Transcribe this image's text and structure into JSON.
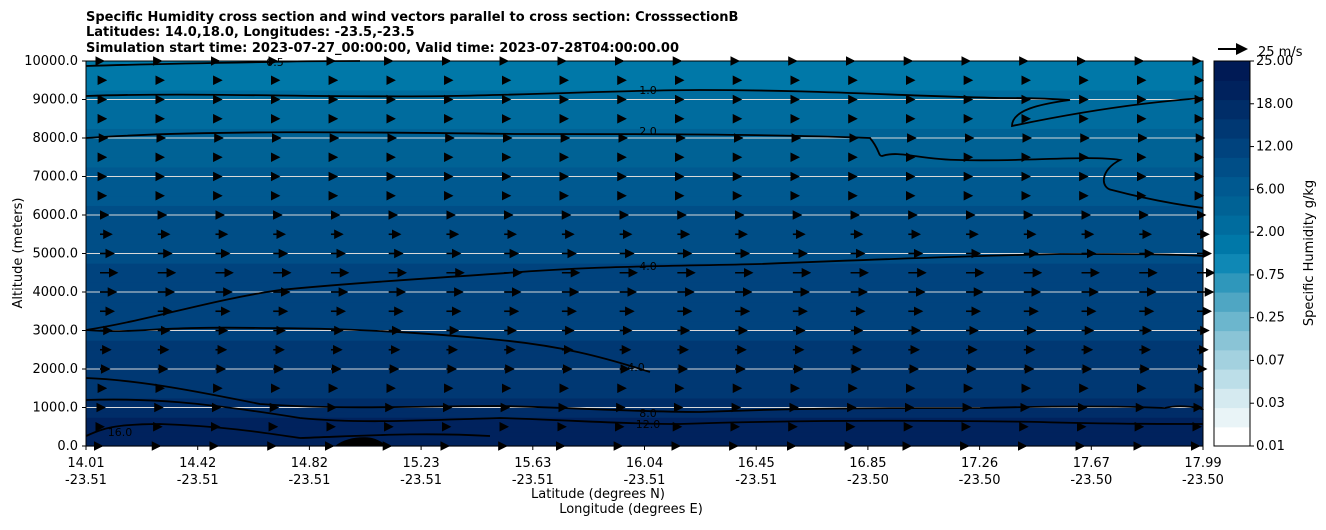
{
  "chart_data": {
    "type": "heatmap",
    "title_lines": [
      "Specific Humidity cross section and wind vectors parallel to cross section: CrosssectionB",
      "Latitudes: 14.0,18.0, Longitudes: -23.5,-23.5",
      "Simulation start time: 2023-07-27_00:00:00, Valid time: 2023-07-28T04:00:00.00"
    ],
    "ylabel": "Altitude (meters)",
    "xlabel_lines": [
      "Latitude (degrees N)",
      "Longitude (degrees E)"
    ],
    "ylim": [
      0,
      10000
    ],
    "y_ticks": [
      "0.0",
      "1000.0",
      "2000.0",
      "3000.0",
      "4000.0",
      "5000.0",
      "6000.0",
      "7000.0",
      "8000.0",
      "9000.0",
      "10000.0"
    ],
    "x_ticks": [
      {
        "lat": "14.01",
        "lon": "-23.51"
      },
      {
        "lat": "14.42",
        "lon": "-23.51"
      },
      {
        "lat": "14.82",
        "lon": "-23.51"
      },
      {
        "lat": "15.23",
        "lon": "-23.51"
      },
      {
        "lat": "15.63",
        "lon": "-23.51"
      },
      {
        "lat": "16.04",
        "lon": "-23.51"
      },
      {
        "lat": "16.45",
        "lon": "-23.51"
      },
      {
        "lat": "16.85",
        "lon": "-23.50"
      },
      {
        "lat": "17.26",
        "lon": "-23.50"
      },
      {
        "lat": "17.67",
        "lon": "-23.50"
      },
      {
        "lat": "17.99",
        "lon": "-23.50"
      }
    ],
    "grid": "horizontal",
    "colorbar": {
      "label": "Specific Humidity g/kg",
      "tick_labels": [
        "0.01",
        "0.03",
        "0.07",
        "0.25",
        "0.75",
        "2.00",
        "6.00",
        "12.00",
        "18.00",
        "25.00"
      ],
      "colors": [
        "#ffffff",
        "#e9f4f7",
        "#d5eaf0",
        "#bcdee8",
        "#a3d1df",
        "#8ac4d6",
        "#6cb6cd",
        "#4fa6c3",
        "#2f97bb",
        "#0f88b5",
        "#0078a8",
        "#006c9e",
        "#006295",
        "#005990",
        "#004e87",
        "#00437e",
        "#003873",
        "#002d68",
        "#00225d",
        "#001a55"
      ]
    },
    "humidity_profile": [
      {
        "alt": 0,
        "q": 17
      },
      {
        "alt": 500,
        "q": 15
      },
      {
        "alt": 1000,
        "q": 9
      },
      {
        "alt": 2000,
        "q": 6
      },
      {
        "alt": 3000,
        "q": 5
      },
      {
        "alt": 4000,
        "q": 4
      },
      {
        "alt": 5000,
        "q": 3.3
      },
      {
        "alt": 6000,
        "q": 2.5
      },
      {
        "alt": 7000,
        "q": 1.8
      },
      {
        "alt": 8000,
        "q": 1.3
      },
      {
        "alt": 9000,
        "q": 0.8
      },
      {
        "alt": 10000,
        "q": 0.5
      }
    ],
    "contour_levels": [
      "0.5",
      "1.0",
      "2.0",
      "4.0",
      "8.0",
      "12.0",
      "16.0"
    ],
    "wind_key": {
      "label": "25 m/s",
      "speed": 25
    },
    "wind_profile_ms": [
      {
        "alt": 10000,
        "u": 3
      },
      {
        "alt": 9500,
        "u": 5
      },
      {
        "alt": 9000,
        "u": 5
      },
      {
        "alt": 8500,
        "u": 5
      },
      {
        "alt": 8000,
        "u": 6
      },
      {
        "alt": 7500,
        "u": 5
      },
      {
        "alt": 7000,
        "u": 5
      },
      {
        "alt": 6500,
        "u": 5
      },
      {
        "alt": 6000,
        "u": 7
      },
      {
        "alt": 5500,
        "u": 10
      },
      {
        "alt": 5000,
        "u": 12
      },
      {
        "alt": 4500,
        "u": 15
      },
      {
        "alt": 4000,
        "u": 14
      },
      {
        "alt": 3500,
        "u": 12
      },
      {
        "alt": 3000,
        "u": 10
      },
      {
        "alt": 2500,
        "u": 9
      },
      {
        "alt": 2000,
        "u": 8
      },
      {
        "alt": 1500,
        "u": 5
      },
      {
        "alt": 1000,
        "u": 4
      },
      {
        "alt": 500,
        "u": 3
      },
      {
        "alt": 0,
        "u": 1
      }
    ]
  }
}
